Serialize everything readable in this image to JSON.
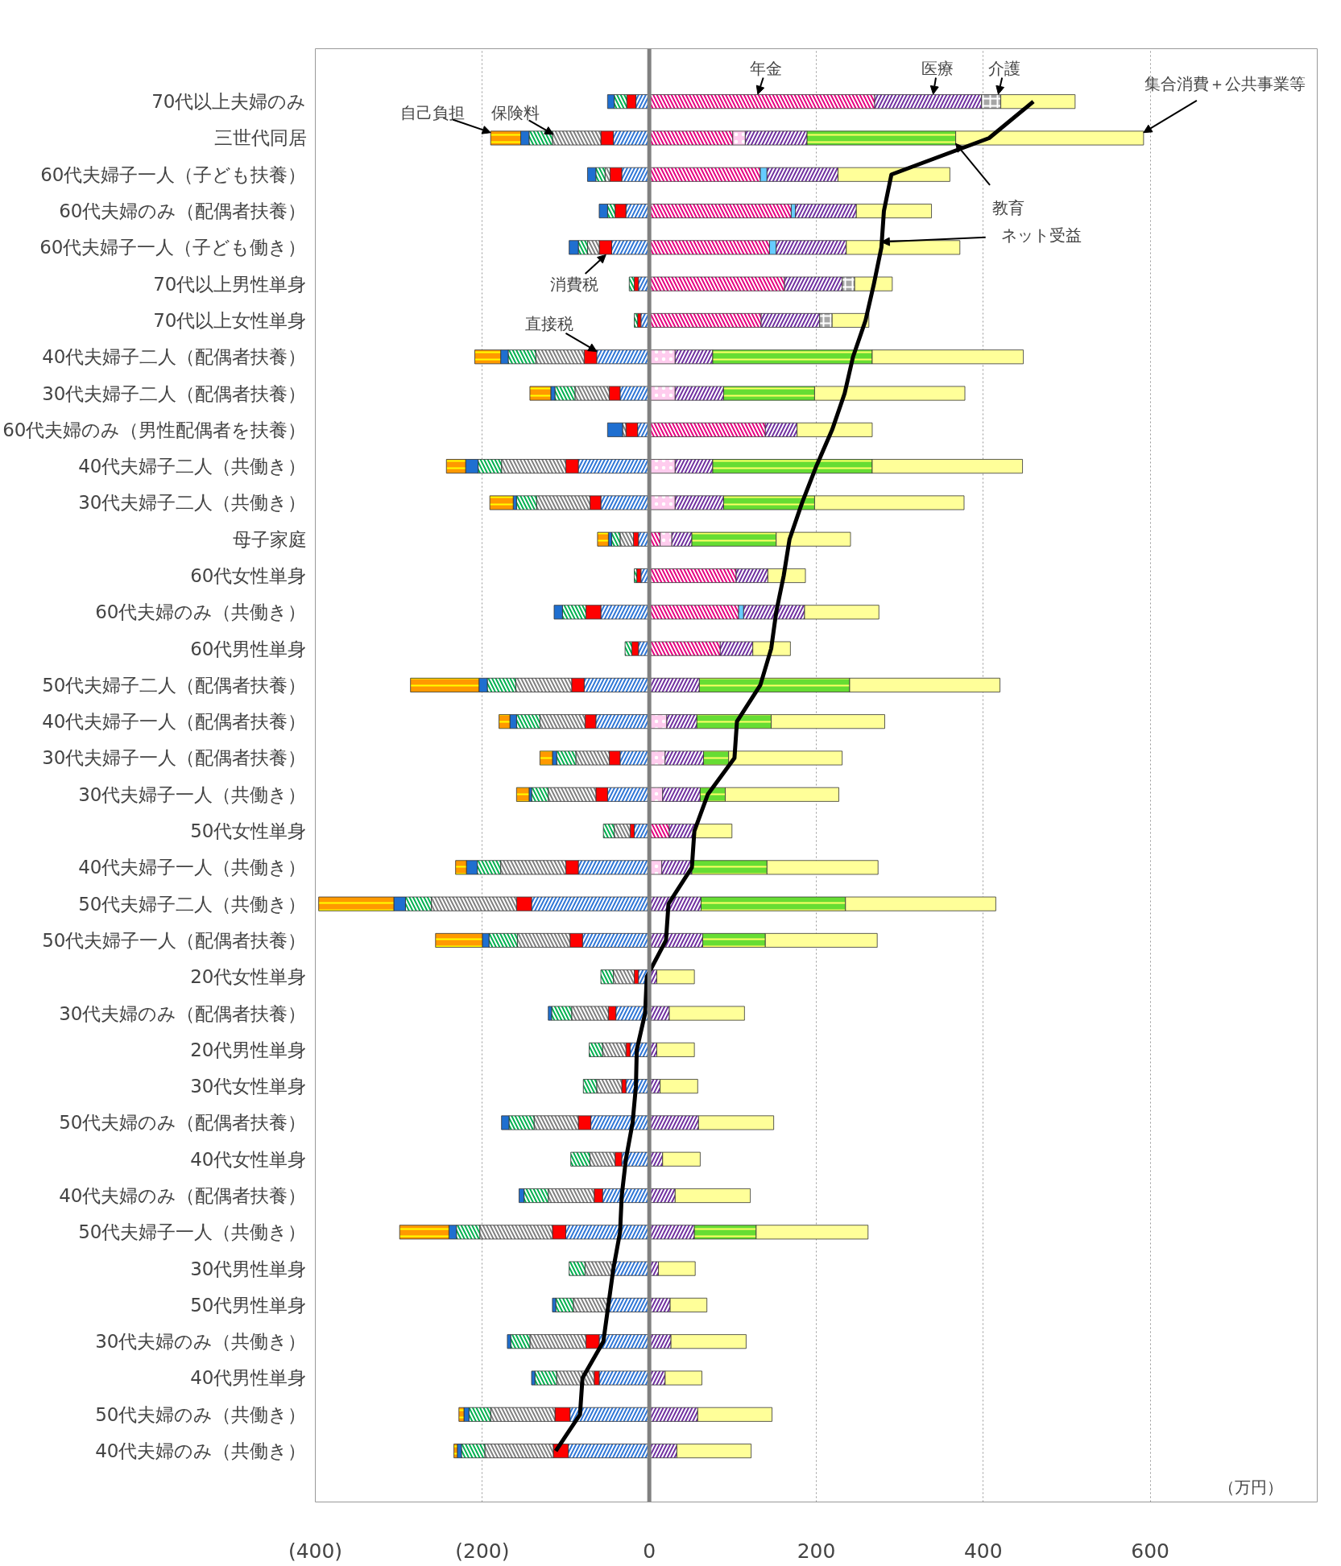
{
  "chart_data": {
    "type": "bar",
    "orientation": "horizontal",
    "stacked": true,
    "categories": [
      "70代以上夫婦のみ",
      "三世代同居",
      "60代夫婦子一人（子ども扶養）",
      "60代夫婦のみ（配偶者扶養）",
      "60代夫婦子一人（子ども働き）",
      "70代以上男性単身",
      "70代以上女性単身",
      "40代夫婦子二人（配偶者扶養）",
      "30代夫婦子二人（配偶者扶養）",
      "60代夫婦のみ（男性配偶者を扶養）",
      "40代夫婦子二人（共働き）",
      "30代夫婦子二人（共働き）",
      "母子家庭",
      "60代女性単身",
      "60代夫婦のみ（共働き）",
      "60代男性単身",
      "50代夫婦子二人（配偶者扶養）",
      "40代夫婦子一人（配偶者扶養）",
      "30代夫婦子一人（配偶者扶養）",
      "30代夫婦子一人（共働き）",
      "50代女性単身",
      "40代夫婦子一人（共働き）",
      "50代夫婦子二人（共働き）",
      "50代夫婦子一人（配偶者扶養）",
      "20代女性単身",
      "30代夫婦のみ（配偶者扶養）",
      "20代男性単身",
      "30代女性単身",
      "50代夫婦のみ（配偶者扶養）",
      "40代女性単身",
      "40代夫婦のみ（配偶者扶養）",
      "50代夫婦子一人（共働き）",
      "30代男性単身",
      "50代男性単身",
      "30代夫婦のみ（共働き）",
      "40代男性単身",
      "50代夫婦のみ（共働き）",
      "40代夫婦のみ（共働き）"
    ],
    "series": [
      {
        "color": "#2e75d6",
        "values": [
          -16,
          -43,
          -33,
          -28,
          -45,
          -13,
          -10,
          -63,
          -35,
          -14,
          -85,
          -58,
          -13,
          -10,
          -58,
          -13,
          -78,
          -64,
          -35,
          -50,
          -18,
          -85,
          -141,
          -80,
          -13,
          -40,
          -23,
          -28,
          -70,
          -33,
          -56,
          -100,
          -43,
          -48,
          -60,
          -60,
          -95,
          -97
        ]
      },
      {
        "color": "#ff0000",
        "values": [
          -11,
          -15,
          -14,
          -13,
          -15,
          -5,
          -4,
          -15,
          -13,
          -14,
          -15,
          -13,
          -6,
          -5,
          -18,
          -8,
          -15,
          -13,
          -13,
          -14,
          -5,
          -15,
          -18,
          -15,
          -5,
          -9,
          -5,
          -5,
          -15,
          -8,
          -10,
          -16,
          null,
          null,
          -16,
          -6,
          -18,
          -18
        ]
      },
      {
        "color": "#808080",
        "values": [
          null,
          -58,
          -6,
          null,
          -14,
          null,
          null,
          -58,
          -41,
          -4,
          -77,
          -64,
          -16,
          null,
          null,
          null,
          -67,
          -54,
          -40,
          -57,
          -19,
          -78,
          -102,
          -63,
          -25,
          -44,
          -28,
          -30,
          -53,
          -30,
          -55,
          -87,
          -34,
          -43,
          -67,
          -45,
          -77,
          -82
        ]
      },
      {
        "color": "#00b050",
        "values": [
          -15,
          -28,
          -11,
          -9,
          -11,
          -6,
          -4,
          -33,
          -24,
          null,
          -28,
          -24,
          -10,
          -3,
          -28,
          -8,
          -34,
          -28,
          -23,
          -20,
          -13,
          -28,
          -31,
          -34,
          -15,
          -24,
          -16,
          -16,
          -30,
          -23,
          -29,
          -28,
          -19,
          -21,
          -23,
          -26,
          -26,
          -28
        ]
      },
      {
        "color": "#1f6fd0",
        "values": [
          -8,
          -10,
          -10,
          -10,
          -11,
          null,
          null,
          -9,
          -5,
          -18,
          -15,
          -4,
          -4,
          null,
          -10,
          null,
          -10,
          -8,
          -5,
          -3,
          null,
          -13,
          -14,
          -8,
          null,
          -4,
          null,
          null,
          -9,
          null,
          -6,
          -9,
          null,
          -4,
          -4,
          -4,
          -6,
          -5
        ]
      },
      {
        "color": "#ff9900",
        "values": [
          null,
          -36,
          null,
          null,
          null,
          null,
          null,
          -31,
          -25,
          null,
          -23,
          -28,
          -13,
          null,
          null,
          null,
          -82,
          -13,
          -15,
          -15,
          null,
          -13,
          -90,
          -56,
          null,
          null,
          null,
          null,
          null,
          null,
          null,
          -59,
          null,
          null,
          null,
          null,
          -6,
          -4
        ]
      },
      {
        "color": "#e6007e",
        "values": [
          270,
          100,
          133,
          170,
          144,
          162,
          134,
          null,
          null,
          139,
          null,
          null,
          13,
          104,
          107,
          85,
          null,
          null,
          null,
          null,
          24,
          null,
          null,
          null,
          null,
          null,
          null,
          null,
          null,
          null,
          null,
          null,
          null,
          null,
          null,
          null,
          null,
          null
        ]
      },
      {
        "color": "#ffccee",
        "values": [
          null,
          15,
          null,
          null,
          null,
          null,
          null,
          31,
          31,
          null,
          31,
          31,
          14,
          null,
          null,
          null,
          null,
          21,
          19,
          16,
          null,
          15,
          null,
          null,
          null,
          null,
          null,
          null,
          null,
          null,
          null,
          null,
          null,
          null,
          null,
          null,
          null,
          null
        ]
      },
      {
        "color": "#66ccff",
        "values": [
          null,
          null,
          8,
          5,
          8,
          null,
          null,
          null,
          null,
          null,
          null,
          null,
          null,
          null,
          6,
          null,
          null,
          null,
          null,
          null,
          null,
          null,
          null,
          null,
          null,
          null,
          null,
          null,
          null,
          null,
          null,
          null,
          null,
          null,
          null,
          null,
          null,
          null
        ]
      },
      {
        "color": "#7030a0",
        "values": [
          128,
          74,
          85,
          73,
          84,
          69,
          70,
          45,
          58,
          38,
          45,
          58,
          24,
          38,
          73,
          39,
          60,
          36,
          46,
          45,
          31,
          36,
          62,
          64,
          9,
          24,
          9,
          13,
          59,
          16,
          31,
          54,
          11,
          25,
          26,
          19,
          58,
          33
        ]
      },
      {
        "color": "#a6a6a6",
        "values": [
          23,
          null,
          null,
          null,
          null,
          15,
          15,
          null,
          null,
          null,
          null,
          null,
          null,
          null,
          null,
          null,
          null,
          null,
          null,
          null,
          null,
          null,
          null,
          null,
          null,
          null,
          null,
          null,
          null,
          null,
          null,
          null,
          null,
          null,
          null,
          null,
          null,
          null
        ]
      },
      {
        "color": "#66dd33",
        "values": [
          null,
          178,
          null,
          null,
          null,
          null,
          null,
          191,
          109,
          null,
          191,
          109,
          101,
          null,
          null,
          null,
          180,
          89,
          30,
          30,
          null,
          90,
          173,
          75,
          null,
          null,
          null,
          null,
          null,
          null,
          null,
          74,
          null,
          null,
          null,
          null,
          null,
          null
        ]
      },
      {
        "color": "#ffff99",
        "values": [
          89,
          225,
          134,
          90,
          136,
          45,
          44,
          181,
          180,
          90,
          180,
          179,
          89,
          45,
          89,
          45,
          180,
          136,
          136,
          136,
          44,
          133,
          180,
          134,
          45,
          90,
          45,
          45,
          90,
          45,
          90,
          134,
          44,
          44,
          90,
          44,
          89,
          89
        ]
      },
      {
        "type": "line",
        "color": "#000000",
        "values": [
          460,
          407,
          290,
          281,
          278,
          269,
          259,
          244,
          234,
          219,
          200,
          183,
          168,
          161,
          152,
          146,
          133,
          105,
          102,
          70,
          54,
          51,
          23,
          20,
          -3,
          -5,
          -15,
          -16,
          -20,
          -28,
          -33,
          -35,
          -43,
          -49,
          -55,
          -80,
          -83,
          -112
        ]
      }
    ],
    "xlim": [
      -400,
      800
    ],
    "xticks": [
      {
        "value": -400,
        "label": "(400)"
      },
      {
        "value": -200,
        "label": "(200)"
      },
      0,
      200,
      400,
      600
    ],
    "grid": "x",
    "ref_lines": [
      {
        "axis": "x",
        "value": 0,
        "color": "#808080"
      }
    ],
    "annotations": [
      "年金",
      "医療",
      "介護",
      {
        "text": "集合消費＋公共事業等",
        "x": 592,
        "y": "三世代同居"
      },
      {
        "text": "自己負担",
        "x": -190,
        "y": "三世代同居"
      },
      "保険料",
      {
        "text": "教育",
        "x": 367,
        "y": "三世代同居"
      },
      {
        "text": "ネット受益",
        "x": 278,
        "y": "60代夫婦子一人（子ども働き）"
      },
      "消費税",
      {
        "text": "直接税",
        "x": -63,
        "y": "40代夫婦子二人（配偶者扶養）"
      },
      "（万円）"
    ]
  }
}
